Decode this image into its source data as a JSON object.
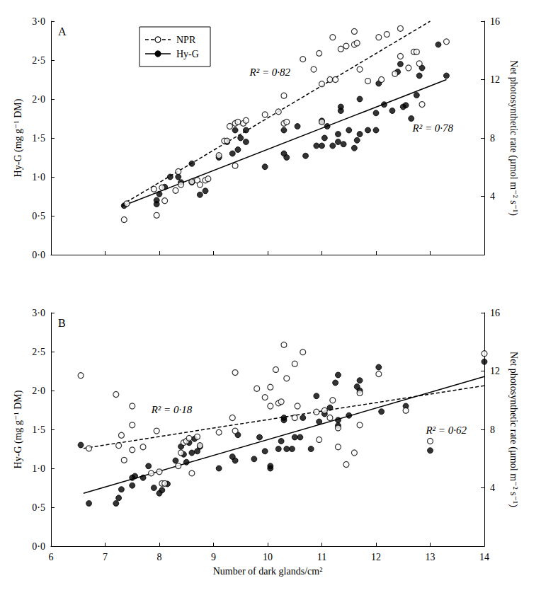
{
  "chart_data": [
    {
      "type": "scatter",
      "title": "A",
      "tick_labels": "y",
      "grid": false,
      "legend": "upper left",
      "ylabel": "Hy-G (mg g⁻¹ DM)",
      "y2label": "Net photosynthetic rate (µmol m⁻² s⁻¹)",
      "xlim": [
        6,
        14
      ],
      "xticks": [
        6,
        7,
        8,
        9,
        10,
        11,
        12,
        13,
        14
      ],
      "ylim": [
        0,
        3
      ],
      "yticks": [
        {
          "value": 0,
          "label": "0·0"
        },
        {
          "value": 0.5,
          "label": "0·5"
        },
        {
          "value": 1,
          "label": "1·0"
        },
        {
          "value": 1.5,
          "label": "1·5"
        },
        {
          "value": 2,
          "label": "2·0"
        },
        {
          "value": 2.5,
          "label": "2·5"
        },
        {
          "value": 3,
          "label": "3·0"
        }
      ],
      "y2lim": [
        0,
        16
      ],
      "y2ticks": [
        4,
        8,
        12,
        16
      ],
      "series": [
        {
          "name": "NPR",
          "color": "#000000",
          "marker": "open_circle",
          "line_style": "dashed",
          "axis": "y2",
          "annotation": "R² = 0·82",
          "fit": [
            [
              7.3,
              3.4
            ],
            [
              13.0,
              16.0
            ]
          ],
          "values": [
            [
              7.35,
              2.4
            ],
            [
              7.4,
              3.5
            ],
            [
              7.95,
              2.7
            ],
            [
              7.9,
              4.5
            ],
            [
              8.05,
              4.6
            ],
            [
              8.1,
              3.7
            ],
            [
              8.3,
              4.4
            ],
            [
              8.35,
              5.7
            ],
            [
              8.4,
              4.8
            ],
            [
              8.6,
              5.0
            ],
            [
              8.7,
              5.1
            ],
            [
              8.75,
              4.8
            ],
            [
              8.85,
              5.1
            ],
            [
              8.9,
              5.2
            ],
            [
              9.1,
              6.8
            ],
            [
              9.2,
              7.8
            ],
            [
              9.25,
              7.8
            ],
            [
              9.3,
              8.8
            ],
            [
              9.4,
              9.0
            ],
            [
              9.45,
              9.1
            ],
            [
              9.4,
              6.1
            ],
            [
              9.55,
              9.0
            ],
            [
              9.6,
              9.2
            ],
            [
              9.95,
              9.6
            ],
            [
              10.2,
              9.8
            ],
            [
              10.3,
              10.9
            ],
            [
              10.3,
              9.0
            ],
            [
              10.35,
              9.1
            ],
            [
              10.65,
              13.4
            ],
            [
              10.85,
              12.7
            ],
            [
              10.95,
              13.8
            ],
            [
              11.0,
              11.7
            ],
            [
              11.0,
              9.1
            ],
            [
              11.2,
              14.9
            ],
            [
              11.15,
              12.0
            ],
            [
              11.25,
              12.0
            ],
            [
              11.35,
              14.1
            ],
            [
              11.45,
              14.3
            ],
            [
              11.6,
              14.4
            ],
            [
              11.6,
              15.3
            ],
            [
              11.65,
              14.5
            ],
            [
              11.7,
              12.7
            ],
            [
              11.85,
              11.9
            ],
            [
              12.05,
              14.9
            ],
            [
              12.1,
              12.0
            ],
            [
              12.2,
              15.1
            ],
            [
              12.35,
              12.4
            ],
            [
              12.45,
              15.5
            ],
            [
              12.45,
              13.6
            ],
            [
              12.6,
              12.8
            ],
            [
              12.7,
              13.9
            ],
            [
              12.75,
              13.9
            ],
            [
              12.8,
              13.1
            ],
            [
              12.85,
              10.3
            ],
            [
              13.3,
              14.6
            ]
          ]
        },
        {
          "name": "Hy-G",
          "color": "#000000",
          "marker": "circle",
          "line_style": "solid",
          "axis": "y",
          "annotation": "R² = 0·78",
          "fit": [
            [
              7.3,
              0.62
            ],
            [
              13.3,
              2.25
            ]
          ],
          "values": [
            [
              7.35,
              0.63
            ],
            [
              7.95,
              0.65
            ],
            [
              7.95,
              0.7
            ],
            [
              8.0,
              0.78
            ],
            [
              8.1,
              0.87
            ],
            [
              8.2,
              1.0
            ],
            [
              8.35,
              1.0
            ],
            [
              8.4,
              0.93
            ],
            [
              8.6,
              1.17
            ],
            [
              8.6,
              0.93
            ],
            [
              8.75,
              0.77
            ],
            [
              8.85,
              0.82
            ],
            [
              9.1,
              1.25
            ],
            [
              9.25,
              1.45
            ],
            [
              9.35,
              1.3
            ],
            [
              9.4,
              1.6
            ],
            [
              9.45,
              1.35
            ],
            [
              9.5,
              1.5
            ],
            [
              9.6,
              1.45
            ],
            [
              9.6,
              1.6
            ],
            [
              9.95,
              1.13
            ],
            [
              10.3,
              1.3
            ],
            [
              10.35,
              1.25
            ],
            [
              10.3,
              1.6
            ],
            [
              10.55,
              1.65
            ],
            [
              10.7,
              1.27
            ],
            [
              10.9,
              1.4
            ],
            [
              11.0,
              1.72
            ],
            [
              11.0,
              1.4
            ],
            [
              11.05,
              1.5
            ],
            [
              11.1,
              1.65
            ],
            [
              11.2,
              1.4
            ],
            [
              11.3,
              1.45
            ],
            [
              11.3,
              1.55
            ],
            [
              11.35,
              1.85
            ],
            [
              11.35,
              1.9
            ],
            [
              11.4,
              1.42
            ],
            [
              11.5,
              1.6
            ],
            [
              11.6,
              1.37
            ],
            [
              11.65,
              1.47
            ],
            [
              11.7,
              2.0
            ],
            [
              11.7,
              1.55
            ],
            [
              11.85,
              1.6
            ],
            [
              12.0,
              1.82
            ],
            [
              12.0,
              1.6
            ],
            [
              12.05,
              2.2
            ],
            [
              12.15,
              1.93
            ],
            [
              12.3,
              1.85
            ],
            [
              12.4,
              2.35
            ],
            [
              12.45,
              2.45
            ],
            [
              12.5,
              1.9
            ],
            [
              12.55,
              1.92
            ],
            [
              12.65,
              1.75
            ],
            [
              12.75,
              2.05
            ],
            [
              12.8,
              2.3
            ],
            [
              12.85,
              2.4
            ],
            [
              13.15,
              2.7
            ],
            [
              13.3,
              2.3
            ]
          ]
        }
      ]
    },
    {
      "type": "scatter",
      "title": "B",
      "grid": false,
      "xlabel": "Number of dark glands/cm²",
      "ylabel": "Hy-G (mg g⁻¹ DM)",
      "y2label": "Net photosynthetic rate (µmol m⁻² s⁻¹)",
      "xlim": [
        6,
        14
      ],
      "xticks": [
        6,
        7,
        8,
        9,
        10,
        11,
        12,
        13,
        14
      ],
      "ylim": [
        0,
        3
      ],
      "yticks": [
        {
          "value": 0,
          "label": "0·0"
        },
        {
          "value": 0.5,
          "label": "0·5"
        },
        {
          "value": 1,
          "label": "1·0"
        },
        {
          "value": 1.5,
          "label": "1·5"
        },
        {
          "value": 2,
          "label": "2·0"
        },
        {
          "value": 2.5,
          "label": "2·5"
        },
        {
          "value": 3,
          "label": "3·0"
        }
      ],
      "y2lim": [
        0,
        16
      ],
      "y2ticks": [
        4,
        8,
        12,
        16
      ],
      "series": [
        {
          "name": "NPR",
          "color": "#000000",
          "marker": "open_circle",
          "line_style": "dashed",
          "axis": "y2",
          "annotation": "R² = 0·18",
          "fit": [
            [
              6.6,
              6.7
            ],
            [
              14.0,
              11.0
            ]
          ],
          "values": [
            [
              6.55,
              11.7
            ],
            [
              6.7,
              6.7
            ],
            [
              7.2,
              10.4
            ],
            [
              7.25,
              6.9
            ],
            [
              7.3,
              7.6
            ],
            [
              7.35,
              5.9
            ],
            [
              7.5,
              9.6
            ],
            [
              7.5,
              8.3
            ],
            [
              7.5,
              6.6
            ],
            [
              7.7,
              6.8
            ],
            [
              7.85,
              5.0
            ],
            [
              7.95,
              7.9
            ],
            [
              8.0,
              5.1
            ],
            [
              8.05,
              4.3
            ],
            [
              8.1,
              4.3
            ],
            [
              8.35,
              5.5
            ],
            [
              8.4,
              6.4
            ],
            [
              8.45,
              7.1
            ],
            [
              8.5,
              7.2
            ],
            [
              8.55,
              7.4
            ],
            [
              8.6,
              5.0
            ],
            [
              8.7,
              7.5
            ],
            [
              8.75,
              6.9
            ],
            [
              9.1,
              7.8
            ],
            [
              9.35,
              8.8
            ],
            [
              9.4,
              11.9
            ],
            [
              9.4,
              7.9
            ],
            [
              9.8,
              10.8
            ],
            [
              9.95,
              10.2
            ],
            [
              10.05,
              9.6
            ],
            [
              10.05,
              10.9
            ],
            [
              10.15,
              12.1
            ],
            [
              10.2,
              9.8
            ],
            [
              10.25,
              9.9
            ],
            [
              10.3,
              13.8
            ],
            [
              10.35,
              11.5
            ],
            [
              10.5,
              8.8
            ],
            [
              10.55,
              9.6
            ],
            [
              10.5,
              12.5
            ],
            [
              10.65,
              13.3
            ],
            [
              10.9,
              9.2
            ],
            [
              10.95,
              7.3
            ],
            [
              11.05,
              9.3
            ],
            [
              11.15,
              8.8
            ],
            [
              11.2,
              10.0
            ],
            [
              11.3,
              8.1
            ],
            [
              11.3,
              6.8
            ],
            [
              11.45,
              5.6
            ],
            [
              11.6,
              6.4
            ],
            [
              11.7,
              10.5
            ],
            [
              11.7,
              8.3
            ],
            [
              12.05,
              11.8
            ],
            [
              12.55,
              9.3
            ],
            [
              13.0,
              7.2
            ],
            [
              14.0,
              13.2
            ]
          ]
        },
        {
          "name": "Hy-G",
          "color": "#000000",
          "marker": "circle",
          "line_style": "solid",
          "axis": "y",
          "annotation": "R² = 0·62",
          "fit": [
            [
              6.6,
              0.68
            ],
            [
              14.0,
              2.18
            ]
          ],
          "values": [
            [
              6.55,
              1.3
            ],
            [
              6.7,
              0.55
            ],
            [
              7.2,
              0.55
            ],
            [
              7.25,
              0.62
            ],
            [
              7.3,
              0.73
            ],
            [
              7.5,
              0.78
            ],
            [
              7.5,
              0.88
            ],
            [
              7.55,
              0.9
            ],
            [
              7.7,
              0.88
            ],
            [
              7.8,
              1.03
            ],
            [
              7.9,
              0.75
            ],
            [
              8.0,
              0.68
            ],
            [
              8.05,
              0.72
            ],
            [
              8.15,
              0.8
            ],
            [
              8.3,
              1.1
            ],
            [
              8.4,
              1.28
            ],
            [
              8.45,
              1.18
            ],
            [
              8.5,
              1.08
            ],
            [
              8.55,
              1.33
            ],
            [
              8.6,
              1.2
            ],
            [
              8.65,
              1.38
            ],
            [
              8.7,
              1.22
            ],
            [
              8.75,
              1.28
            ],
            [
              9.1,
              1.0
            ],
            [
              9.35,
              1.15
            ],
            [
              9.4,
              1.1
            ],
            [
              9.45,
              1.43
            ],
            [
              9.75,
              1.12
            ],
            [
              9.85,
              1.4
            ],
            [
              9.95,
              1.22
            ],
            [
              10.05,
              1.0
            ],
            [
              10.05,
              1.03
            ],
            [
              10.2,
              1.25
            ],
            [
              10.25,
              1.35
            ],
            [
              10.3,
              1.62
            ],
            [
              10.3,
              1.65
            ],
            [
              10.35,
              1.25
            ],
            [
              10.45,
              1.25
            ],
            [
              10.5,
              1.4
            ],
            [
              10.65,
              1.65
            ],
            [
              10.6,
              1.4
            ],
            [
              10.8,
              1.25
            ],
            [
              10.9,
              1.93
            ],
            [
              10.95,
              1.6
            ],
            [
              11.05,
              1.7
            ],
            [
              11.15,
              1.78
            ],
            [
              11.25,
              2.1
            ],
            [
              11.3,
              2.2
            ],
            [
              11.3,
              1.62
            ],
            [
              11.3,
              1.55
            ],
            [
              11.5,
              1.68
            ],
            [
              11.65,
              2.05
            ],
            [
              11.7,
              2.13
            ],
            [
              11.7,
              2.0
            ],
            [
              12.05,
              2.3
            ],
            [
              12.1,
              1.73
            ],
            [
              12.55,
              1.8
            ],
            [
              13.0,
              1.23
            ],
            [
              14.0,
              2.37
            ]
          ]
        }
      ]
    }
  ]
}
